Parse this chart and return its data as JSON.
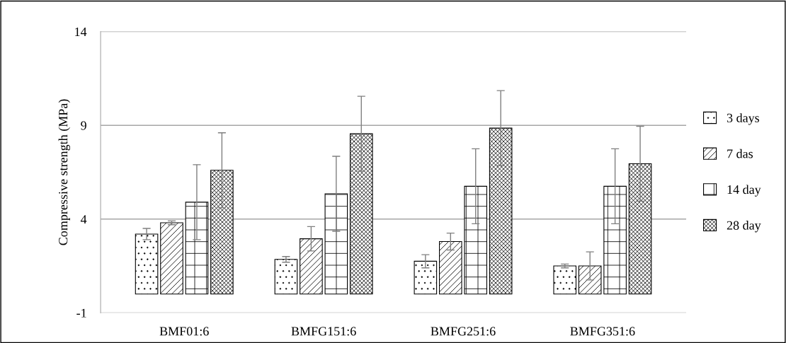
{
  "chart_data": {
    "type": "bar",
    "ylabel": "Compressive strength (MPa)",
    "categories": [
      "BMF01:6",
      "BMFG151:6",
      "BMFG251:6",
      "BMFG351:6"
    ],
    "series": [
      {
        "name": "3 days",
        "color": "#000000",
        "values": [
          3.2,
          1.85,
          1.75,
          1.5
        ],
        "errors": [
          0.3,
          0.15,
          0.35,
          0.1
        ]
      },
      {
        "name": "7 das",
        "color": "#000000",
        "values": [
          3.8,
          2.95,
          2.8,
          1.5
        ],
        "errors": [
          0.1,
          0.65,
          0.45,
          0.75
        ]
      },
      {
        "name": "14 day",
        "color": "#000000",
        "values": [
          4.9,
          5.35,
          5.75,
          5.75
        ],
        "errors": [
          2.0,
          2.0,
          2.0,
          2.0
        ]
      },
      {
        "name": "28 day",
        "color": "#000000",
        "values": [
          6.6,
          8.55,
          8.85,
          6.95
        ],
        "errors": [
          2.0,
          2.0,
          2.0,
          2.0
        ]
      }
    ],
    "ylim": [
      -1,
      14
    ],
    "yticks": [
      -1,
      4,
      9,
      14
    ],
    "grid": "y",
    "legend": "right"
  }
}
